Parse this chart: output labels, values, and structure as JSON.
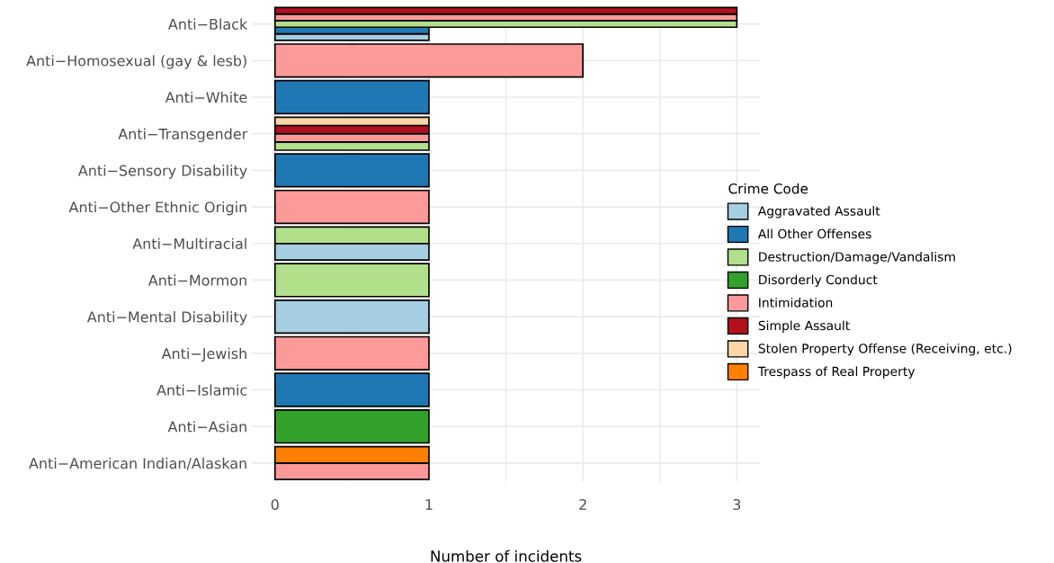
{
  "chart_data": {
    "type": "bar",
    "orientation": "horizontal",
    "xlabel": "Number of incidents",
    "legend_title": "Crime Code",
    "legend": "right",
    "grid": true,
    "categories": [
      "Anti−Black",
      "Anti−Homosexual (gay & lesb)",
      "Anti−White",
      "Anti−Transgender",
      "Anti−Sensory Disability",
      "Anti−Other Ethnic Origin",
      "Anti−Multiracial",
      "Anti−Mormon",
      "Anti−Mental Disability",
      "Anti−Jewish",
      "Anti−Islamic",
      "Anti−Asian",
      "Anti−American Indian/Alaskan"
    ],
    "xlim": [
      -0.15,
      3.15
    ],
    "xticks": [
      0,
      {
        "value": 0.5,
        "label": null
      },
      1,
      {
        "value": 1.5,
        "label": null
      },
      2,
      {
        "value": 2.5,
        "label": null
      },
      3
    ],
    "series": [
      {
        "name": "Aggravated Assault",
        "color": "#a6cee3",
        "values": [
          1,
          null,
          null,
          null,
          null,
          null,
          1,
          null,
          1,
          null,
          null,
          null,
          null
        ]
      },
      {
        "name": "All Other Offenses",
        "color": "#1f78b4",
        "values": [
          1,
          null,
          1,
          null,
          1,
          null,
          null,
          null,
          null,
          null,
          1,
          null,
          null
        ]
      },
      {
        "name": "Destruction/Damage/Vandalism",
        "color": "#b2df8a",
        "values": [
          3,
          null,
          null,
          1,
          null,
          null,
          1,
          1,
          null,
          null,
          null,
          null,
          null
        ]
      },
      {
        "name": "Disorderly Conduct",
        "color": "#33a02c",
        "values": [
          null,
          null,
          null,
          null,
          null,
          null,
          null,
          null,
          null,
          null,
          null,
          1,
          null
        ]
      },
      {
        "name": "Intimidation",
        "color": "#fb9a99",
        "values": [
          3,
          2,
          null,
          1,
          null,
          1,
          null,
          null,
          null,
          1,
          null,
          null,
          1
        ]
      },
      {
        "name": "Simple Assault",
        "color": "#b2101f",
        "values": [
          3,
          null,
          null,
          1,
          null,
          null,
          null,
          null,
          null,
          null,
          null,
          null,
          null
        ]
      },
      {
        "name": "Stolen Property Offense (Receiving, etc.)",
        "color": "#fdd5a6",
        "values": [
          null,
          null,
          null,
          1,
          null,
          null,
          null,
          null,
          null,
          null,
          null,
          null,
          null
        ]
      },
      {
        "name": "Trespass of Real Property",
        "color": "#ff7f00",
        "values": [
          null,
          null,
          null,
          null,
          null,
          null,
          null,
          null,
          null,
          null,
          null,
          null,
          1
        ]
      }
    ]
  }
}
